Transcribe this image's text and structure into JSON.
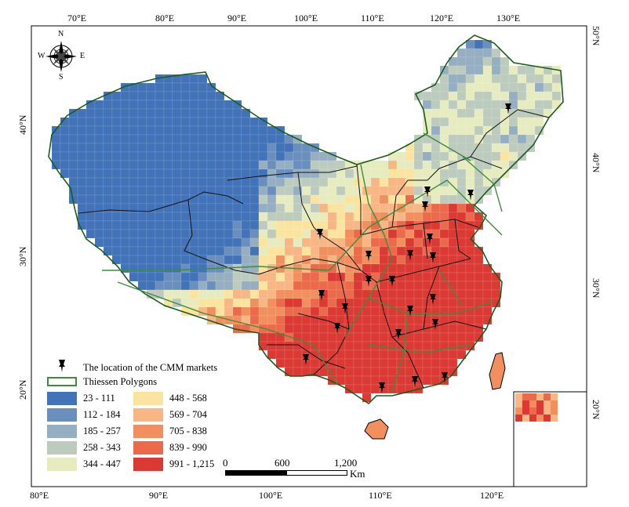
{
  "map": {
    "longitude_labels_top": [
      "70°E",
      "80°E",
      "90°E",
      "100°E",
      "110°E",
      "120°E",
      "130°E"
    ],
    "longitude_labels_bottom": [
      "80°E",
      "90°E",
      "100°E",
      "110°E",
      "120°E"
    ],
    "latitude_labels_left": [
      "40°N",
      "30°N",
      "20°N"
    ],
    "latitude_labels_right": [
      "50°N",
      "40°N",
      "30°N",
      "20°N"
    ],
    "compass": {
      "north": "N",
      "south": "S",
      "east": "E",
      "west": "W"
    },
    "markets_count": 22
  },
  "legend": {
    "markets_label": "The location of the CMM markets",
    "polygons_label": "Thiessen Polygons",
    "classes": [
      {
        "range": "23 - 111",
        "color": "#4273b8"
      },
      {
        "range": "112 - 184",
        "color": "#6a8fbe"
      },
      {
        "range": "185 - 257",
        "color": "#95aec1"
      },
      {
        "range": "258 - 343",
        "color": "#bdcbbf"
      },
      {
        "range": "344 - 447",
        "color": "#e6ecbf"
      },
      {
        "range": "448 - 568",
        "color": "#fbe3a0"
      },
      {
        "range": "569 - 704",
        "color": "#f7b684"
      },
      {
        "range": "705 - 838",
        "color": "#f1905e"
      },
      {
        "range": "839 - 990",
        "color": "#ea6a4b"
      },
      {
        "range": "991 - 1,215",
        "color": "#db3a34"
      }
    ]
  },
  "scalebar": {
    "ticks": [
      "0",
      "600",
      "1,200"
    ],
    "unit": "Km"
  }
}
